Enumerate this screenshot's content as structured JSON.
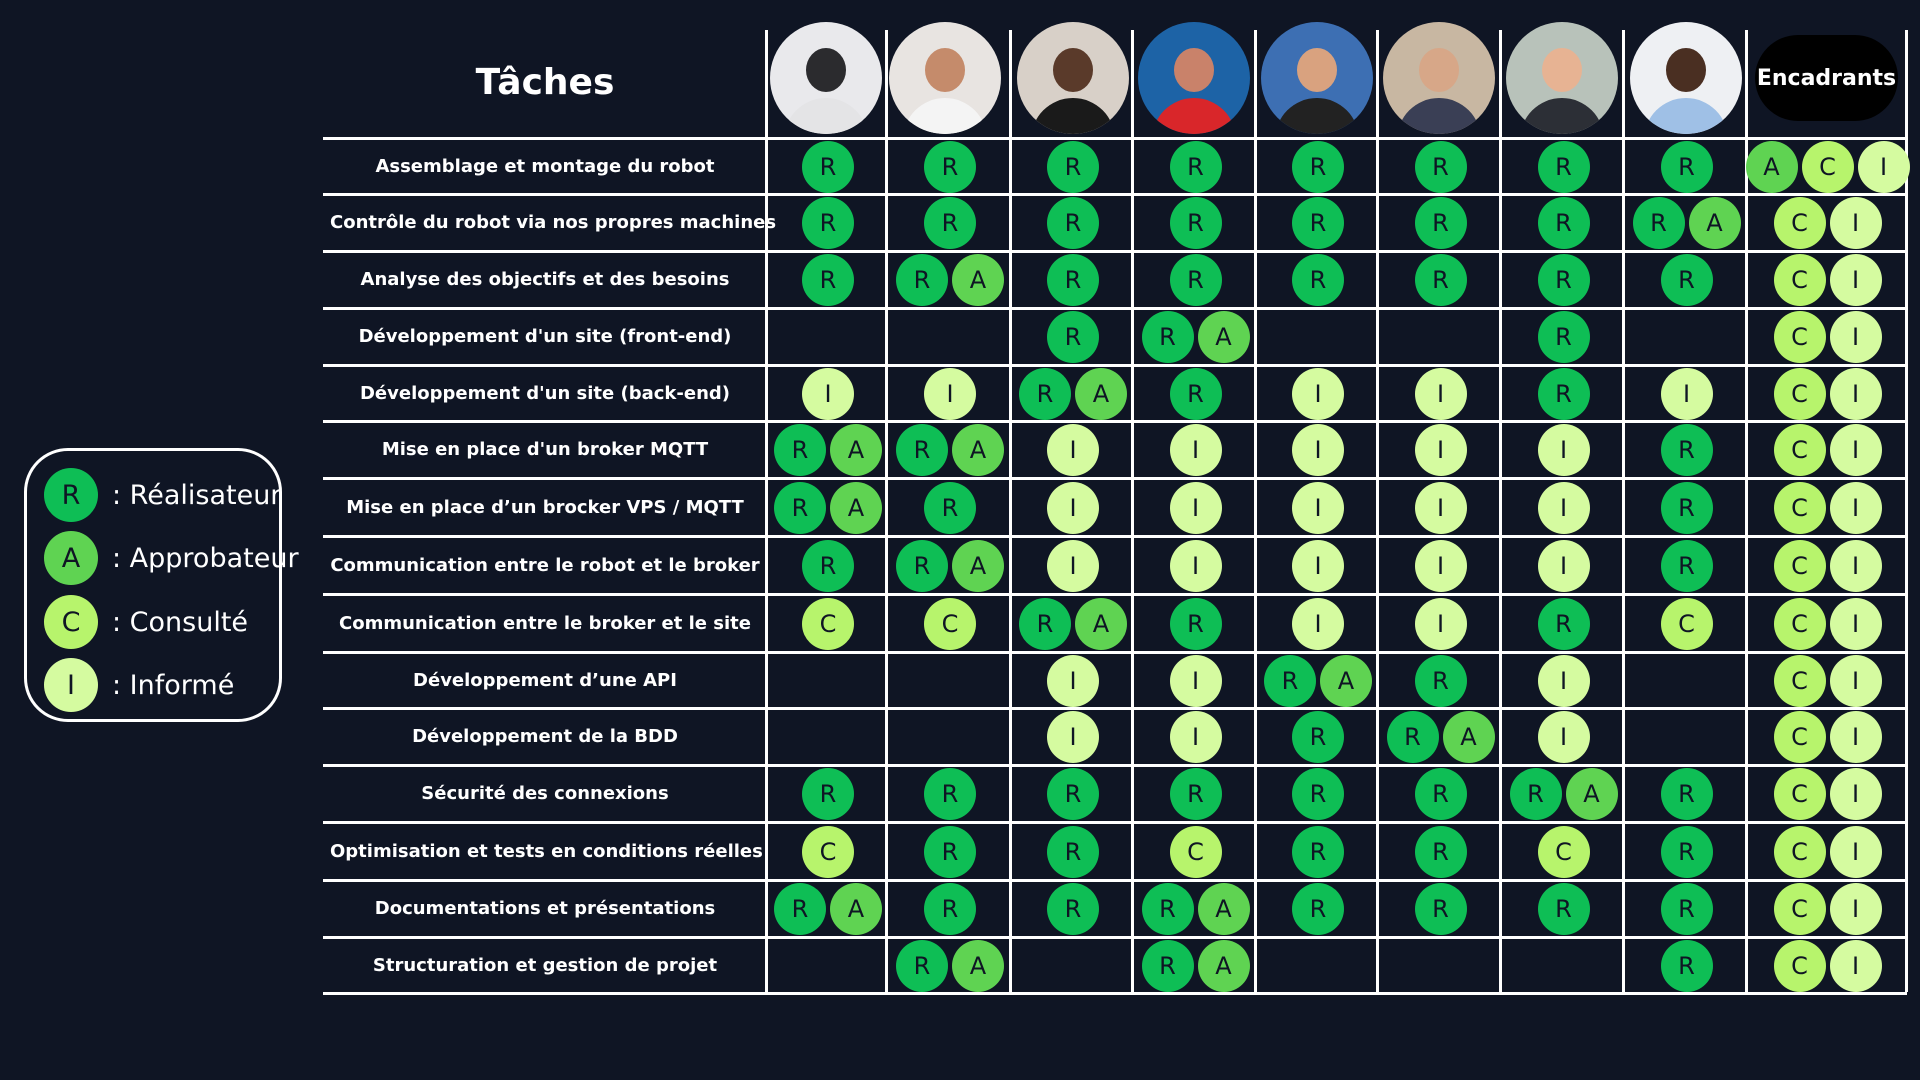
{
  "header": {
    "title": "Tâches",
    "encadrants_label": "Encadrants"
  },
  "legend": [
    {
      "role": "R",
      "label": ": Réalisateur"
    },
    {
      "role": "A",
      "label": ": Approbateur"
    },
    {
      "role": "C",
      "label": ": Consulté"
    },
    {
      "role": "I",
      "label": ": Informé"
    }
  ],
  "colors": {
    "background": "#0f1524",
    "R": "#0ebe55",
    "A": "#5fd352",
    "C": "#b7f46c",
    "I": "#d5fba0"
  },
  "members": [
    {
      "photo": "member-1-photo"
    },
    {
      "photo": "member-2-photo"
    },
    {
      "photo": "member-3-photo"
    },
    {
      "photo": "member-4-photo"
    },
    {
      "photo": "member-5-photo"
    },
    {
      "photo": "member-6-photo"
    },
    {
      "photo": "member-7-photo"
    },
    {
      "photo": "member-8-photo"
    }
  ],
  "tasks": [
    {
      "label": "Assemblage et montage du robot",
      "cells": [
        "R",
        "R",
        "R",
        "R",
        "R",
        "R",
        "R",
        "R",
        "ACI"
      ]
    },
    {
      "label": "Contrôle du robot via nos propres machines",
      "cells": [
        "R",
        "R",
        "R",
        "R",
        "R",
        "R",
        "R",
        "RA",
        "CI"
      ]
    },
    {
      "label": "Analyse des objectifs et des besoins",
      "cells": [
        "R",
        "RA",
        "R",
        "R",
        "R",
        "R",
        "R",
        "R",
        "CI"
      ]
    },
    {
      "label": "Développement d'un site (front-end)",
      "cells": [
        "",
        "",
        "R",
        "RA",
        "",
        "",
        "R",
        "",
        "CI"
      ]
    },
    {
      "label": "Développement d'un site (back-end)",
      "cells": [
        "I",
        "I",
        "RA",
        "R",
        "I",
        "I",
        "R",
        "I",
        "CI"
      ]
    },
    {
      "label": "Mise en place d'un broker MQTT",
      "cells": [
        "RA",
        "RA",
        "I",
        "I",
        "I",
        "I",
        "I",
        "R",
        "CI"
      ]
    },
    {
      "label": "Mise en place d’un brocker VPS / MQTT",
      "cells": [
        "RA",
        "R",
        "I",
        "I",
        "I",
        "I",
        "I",
        "R",
        "CI"
      ]
    },
    {
      "label": "Communication entre le robot et le broker",
      "cells": [
        "R",
        "RA",
        "I",
        "I",
        "I",
        "I",
        "I",
        "R",
        "CI"
      ]
    },
    {
      "label": "Communication entre le broker et le site",
      "cells": [
        "C",
        "C",
        "RA",
        "R",
        "I",
        "I",
        "R",
        "C",
        "CI"
      ]
    },
    {
      "label": "Développement d’une API",
      "cells": [
        "",
        "",
        "I",
        "I",
        "RA",
        "R",
        "I",
        "",
        "CI"
      ]
    },
    {
      "label": "Développement de la BDD",
      "cells": [
        "",
        "",
        "I",
        "I",
        "R",
        "RA",
        "I",
        "",
        "CI"
      ]
    },
    {
      "label": "Sécurité des connexions",
      "cells": [
        "R",
        "R",
        "R",
        "R",
        "R",
        "R",
        "RA",
        "R",
        "CI"
      ]
    },
    {
      "label": "Optimisation et tests en conditions réelles",
      "cells": [
        "C",
        "R",
        "R",
        "C",
        "R",
        "R",
        "C",
        "R",
        "CI"
      ]
    },
    {
      "label": "Documentations et présentations",
      "cells": [
        "RA",
        "R",
        "R",
        "RA",
        "R",
        "R",
        "R",
        "R",
        "CI"
      ]
    },
    {
      "label": "Structuration et gestion de projet",
      "cells": [
        "",
        "RA",
        "",
        "RA",
        "",
        "",
        "",
        "R",
        "CI"
      ]
    }
  ]
}
